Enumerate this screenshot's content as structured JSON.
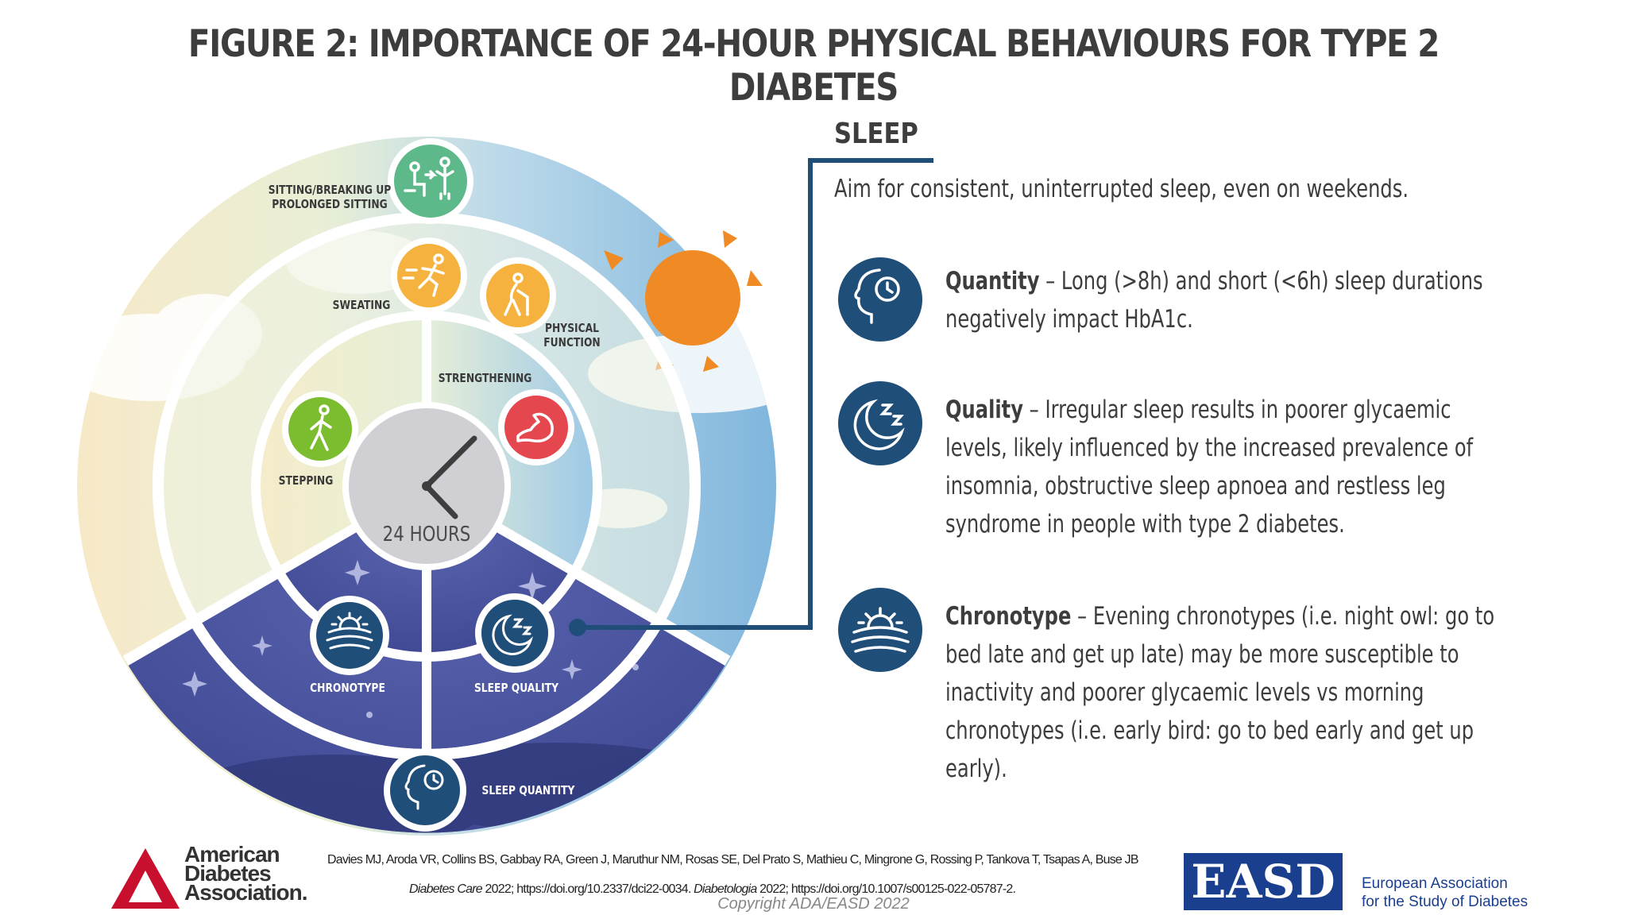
{
  "title": "FIGURE 2: IMPORTANCE OF 24-HOUR PHYSICAL BEHAVIOURS FOR TYPE 2 DIABETES",
  "wheel": {
    "center_label": "24 HOURS",
    "labels": {
      "sitting": "SITTING/BREAKING UP\nPROLONGED SITTING",
      "sweating": "SWEATING",
      "physical_function": "PHYSICAL\nFUNCTION",
      "strengthening": "STRENGTHENING",
      "stepping": "STEPPING",
      "chronotype": "CHRONOTYPE",
      "sleep_quality": "SLEEP QUALITY",
      "sleep_quantity": "SLEEP QUANTITY"
    },
    "icons": {
      "sitting": "sitting-standing-icon",
      "sweating": "running-icon",
      "physical_function": "walking-cane-icon",
      "strengthening": "flexed-arm-icon",
      "stepping": "walking-person-icon",
      "chronotype": "sunrise-icon",
      "sleep_quality": "moon-zzz-icon",
      "sleep_quantity": "head-clock-icon"
    },
    "colors": {
      "sitting": "#5db88a",
      "sweating": "#f6b23e",
      "physical_function": "#f6b23e",
      "strengthening": "#e5474f",
      "stepping": "#7cbd2f",
      "sleep": "#1f4e79",
      "night": "#434d98"
    }
  },
  "sleep": {
    "heading": "SLEEP",
    "intro": "Aim for consistent, uninterrupted sleep, even on weekends.",
    "items": [
      {
        "term": "Quantity",
        "text": " – Long (>8h) and short (<6h) sleep durations negatively impact HbA1c.",
        "icon": "head-clock-icon"
      },
      {
        "term": "Quality",
        "text": " – Irregular sleep results in poorer glycaemic levels, likely influenced by the increased prevalence of insomnia, obstructive sleep apnoea and restless leg syndrome in people with type 2 diabetes.",
        "icon": "moon-zzz-icon"
      },
      {
        "term": "Chronotype",
        "text": " – Evening chronotypes (i.e. night owl: go to bed late and get up late) may be more susceptible to inactivity and poorer glycaemic levels vs morning chronotypes (i.e. early bird:  go to bed early and get up early).",
        "icon": "sunrise-icon"
      }
    ]
  },
  "footer": {
    "authors": "Davies MJ, Aroda VR, Collins BS, Gabbay RA, Green J, Maruthur NM, Rosas SE, Del Prato S, Mathieu C, Mingrone G, Rossing P, Tankova T, Tsapas A, Buse JB",
    "journal1": "Diabetes Care",
    "cite1": " 2022; https://doi.org/10.2337/dci22-0034. ",
    "journal2": "Diabetologia",
    "cite2": " 2022; https://doi.org/10.1007/s00125-022-05787-2.",
    "copyright": "Copyright ADA/EASD 2022",
    "ada_name": "American\nDiabetes\nAssociation.",
    "easd_abbr": "EASD",
    "easd_name": "European Association\nfor the Study of Diabetes"
  }
}
